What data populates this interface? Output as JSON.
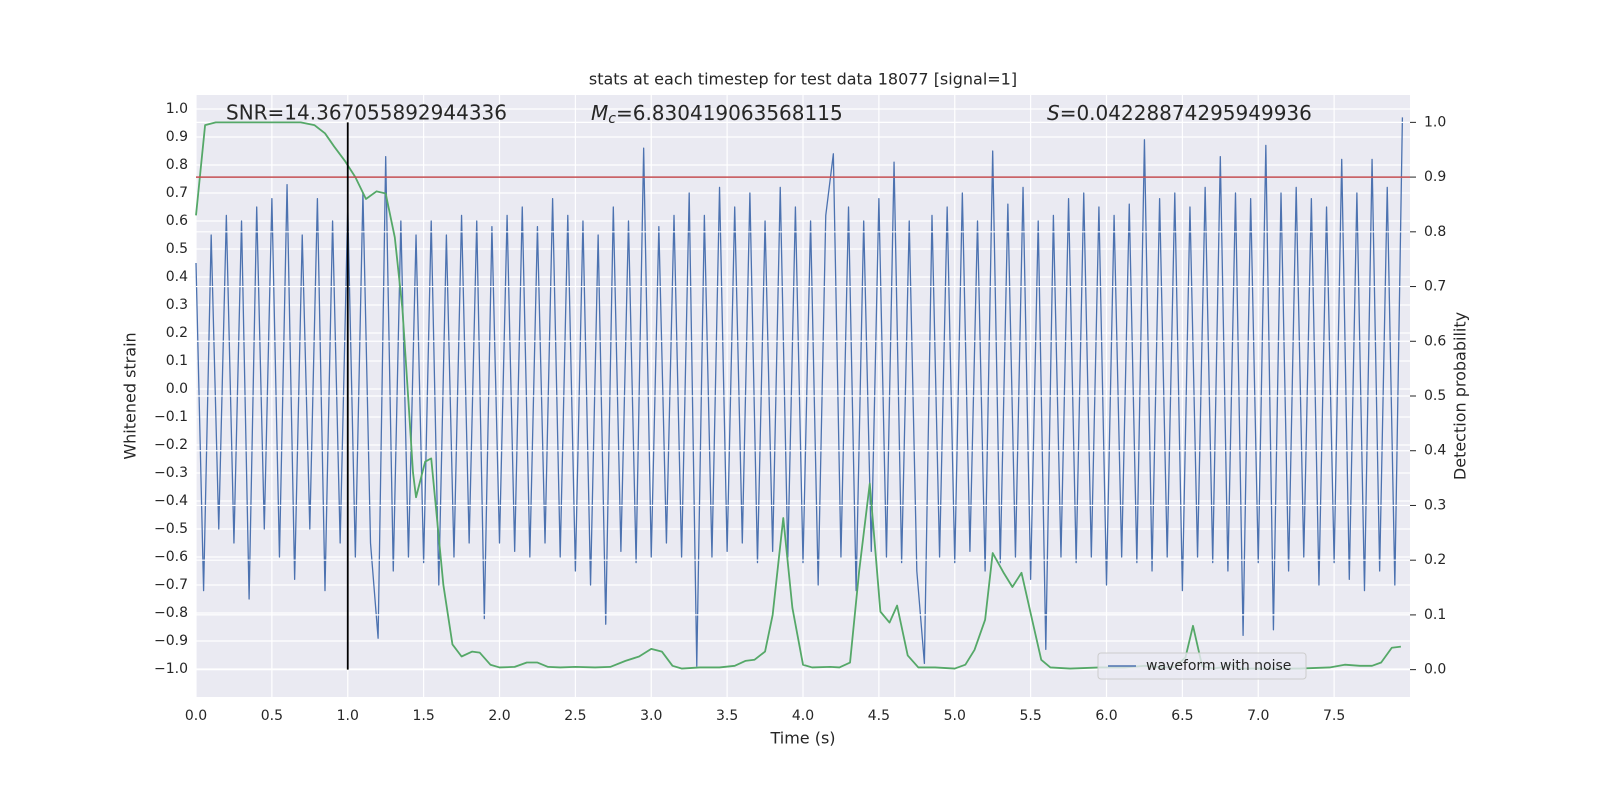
{
  "chart_data": {
    "type": "line",
    "title": "stats at each timestep for test data 18077 [signal=1]",
    "xlabel": "Time (s)",
    "ylabel": "Whitened strain",
    "y2label": "Detection probability",
    "annotations": [
      {
        "text": "SNR=14.367055892944336"
      },
      {
        "symbol": "M",
        "subscript": "c",
        "text": "=6.830419063568115"
      },
      {
        "symbol": "S",
        "text": "=0.04228874295949936"
      }
    ],
    "xlim": [
      0,
      8
    ],
    "ylim": [
      -1.1,
      1.05
    ],
    "y2lim": [
      -0.05,
      1.05
    ],
    "grid": true,
    "legend": "lower right",
    "xticks": [
      {
        "value": 0,
        "label": "0.0"
      },
      {
        "value": 0.5,
        "label": "0.5"
      },
      {
        "value": 1,
        "label": "1.0"
      },
      {
        "value": 1.5,
        "label": "1.5"
      },
      {
        "value": 2,
        "label": "2.0"
      },
      {
        "value": 2.5,
        "label": "2.5"
      },
      {
        "value": 3,
        "label": "3.0"
      },
      {
        "value": 3.5,
        "label": "3.5"
      },
      {
        "value": 4,
        "label": "4.0"
      },
      {
        "value": 4.5,
        "label": "4.5"
      },
      {
        "value": 5,
        "label": "5.0"
      },
      {
        "value": 5.5,
        "label": "5.5"
      },
      {
        "value": 6,
        "label": "6.0"
      },
      {
        "value": 6.5,
        "label": "6.5"
      },
      {
        "value": 7,
        "label": "7.0"
      },
      {
        "value": 7.5,
        "label": "7.5"
      }
    ],
    "yticks": [
      {
        "value": 1,
        "label": "1.0"
      },
      {
        "value": 0.9,
        "label": "0.9"
      },
      {
        "value": 0.8,
        "label": "0.8"
      },
      {
        "value": 0.7,
        "label": "0.7"
      },
      {
        "value": 0.6,
        "label": "0.6"
      },
      {
        "value": 0.5,
        "label": "0.5"
      },
      {
        "value": 0.4,
        "label": "0.4"
      },
      {
        "value": 0.3,
        "label": "0.3"
      },
      {
        "value": 0.2,
        "label": "0.2"
      },
      {
        "value": 0.1,
        "label": "0.1"
      },
      {
        "value": 0,
        "label": "0.0"
      },
      {
        "value": -0.1,
        "label": "−0.1"
      },
      {
        "value": -0.2,
        "label": "−0.2"
      },
      {
        "value": -0.3,
        "label": "−0.3"
      },
      {
        "value": -0.4,
        "label": "−0.4"
      },
      {
        "value": -0.5,
        "label": "−0.5"
      },
      {
        "value": -0.6,
        "label": "−0.6"
      },
      {
        "value": -0.7,
        "label": "−0.7"
      },
      {
        "value": -0.8,
        "label": "−0.8"
      },
      {
        "value": -0.9,
        "label": "−0.9"
      },
      {
        "value": -1,
        "label": "−1.0"
      }
    ],
    "y2ticks": [
      {
        "value": 0,
        "label": "0.0"
      },
      {
        "value": 0.1,
        "label": "0.1"
      },
      {
        "value": 0.2,
        "label": "0.2"
      },
      {
        "value": 0.3,
        "label": "0.3"
      },
      {
        "value": 0.4,
        "label": "0.4"
      },
      {
        "value": 0.5,
        "label": "0.5"
      },
      {
        "value": 0.6,
        "label": "0.6"
      },
      {
        "value": 0.7,
        "label": "0.7"
      },
      {
        "value": 0.8,
        "label": "0.8"
      },
      {
        "value": 0.9,
        "label": "0.9"
      },
      {
        "value": 1,
        "label": "1.0"
      }
    ],
    "hlines": [
      {
        "y": 0.9,
        "axis": "y2",
        "color": "#c44e52"
      }
    ],
    "vlines": [
      {
        "x": 1,
        "ymin": 0,
        "ymax": 1,
        "axis": "y2",
        "color": "#000000"
      }
    ],
    "series": [
      {
        "name": "waveform with noise",
        "color": "#4c72b0",
        "x": [
          0,
          0.05,
          0.1,
          0.15,
          0.2,
          0.25,
          0.3,
          0.35,
          0.4,
          0.45,
          0.5,
          0.55,
          0.6,
          0.65,
          0.7,
          0.75,
          0.8,
          0.85,
          0.9,
          0.95,
          1,
          1.05,
          1.1,
          1.15,
          1.2,
          1.25,
          1.3,
          1.35,
          1.4,
          1.45,
          1.5,
          1.55,
          1.6,
          1.65,
          1.7,
          1.75,
          1.8,
          1.85,
          1.9,
          1.95,
          2,
          2.05,
          2.1,
          2.15,
          2.2,
          2.25,
          2.3,
          2.35,
          2.4,
          2.45,
          2.5,
          2.55,
          2.6,
          2.65,
          2.7,
          2.75,
          2.8,
          2.85,
          2.9,
          2.95,
          3,
          3.05,
          3.1,
          3.15,
          3.2,
          3.25,
          3.3,
          3.35,
          3.4,
          3.45,
          3.5,
          3.55,
          3.6,
          3.65,
          3.7,
          3.75,
          3.8,
          3.85,
          3.9,
          3.95,
          4,
          4.05,
          4.1,
          4.15,
          4.2,
          4.25,
          4.3,
          4.35,
          4.4,
          4.45,
          4.5,
          4.55,
          4.6,
          4.65,
          4.7,
          4.75,
          4.8,
          4.85,
          4.9,
          4.95,
          5,
          5.05,
          5.1,
          5.15,
          5.2,
          5.25,
          5.3,
          5.35,
          5.4,
          5.45,
          5.5,
          5.55,
          5.6,
          5.65,
          5.7,
          5.75,
          5.8,
          5.85,
          5.9,
          5.95,
          6,
          6.05,
          6.1,
          6.15,
          6.2,
          6.25,
          6.3,
          6.35,
          6.4,
          6.45,
          6.5,
          6.55,
          6.6,
          6.65,
          6.7,
          6.75,
          6.8,
          6.85,
          6.9,
          6.95,
          7,
          7.05,
          7.1,
          7.15,
          7.2,
          7.25,
          7.3,
          7.35,
          7.4,
          7.45,
          7.5,
          7.55,
          7.6,
          7.65,
          7.7,
          7.75,
          7.8,
          7.85,
          7.9,
          7.95
        ],
        "values": [
          0.45,
          -0.72,
          0.55,
          -0.5,
          0.62,
          -0.55,
          0.6,
          -0.75,
          0.65,
          -0.5,
          0.68,
          -0.6,
          0.73,
          -0.68,
          0.55,
          -0.5,
          0.68,
          -0.72,
          0.6,
          -0.55,
          0.65,
          -0.6,
          0.7,
          -0.55,
          -0.89,
          0.83,
          -0.65,
          0.6,
          -0.6,
          0.55,
          -0.62,
          0.6,
          -0.7,
          0.55,
          -0.6,
          0.62,
          -0.55,
          0.6,
          -0.82,
          0.58,
          -0.55,
          0.62,
          -0.58,
          0.65,
          -0.6,
          0.58,
          -0.55,
          0.68,
          -0.6,
          0.62,
          -0.65,
          0.6,
          -0.7,
          0.55,
          -0.84,
          0.65,
          -0.58,
          0.6,
          -0.62,
          0.86,
          -0.6,
          0.58,
          -0.55,
          0.62,
          -0.6,
          0.7,
          -0.99,
          0.62,
          -0.6,
          0.72,
          -0.58,
          0.65,
          -0.55,
          0.7,
          -0.62,
          0.6,
          -0.58,
          0.72,
          -0.6,
          0.65,
          -0.62,
          0.6,
          -0.7,
          0.62,
          0.84,
          -0.6,
          0.65,
          -0.72,
          0.6,
          -0.58,
          0.68,
          -0.6,
          0.81,
          -0.62,
          0.6,
          -0.65,
          -0.98,
          0.62,
          -0.6,
          0.65,
          -0.62,
          0.7,
          -0.58,
          0.6,
          -0.65,
          0.85,
          -0.62,
          0.66,
          -0.6,
          0.72,
          -0.68,
          0.6,
          -0.93,
          0.62,
          -0.6,
          0.68,
          -0.62,
          0.7,
          -0.6,
          0.65,
          -0.7,
          0.62,
          -0.6,
          0.66,
          -0.62,
          0.89,
          -0.65,
          0.68,
          -0.6,
          0.7,
          -0.72,
          0.65,
          -0.6,
          0.72,
          -0.62,
          0.83,
          -0.65,
          0.7,
          -0.88,
          0.68,
          -0.62,
          0.87,
          -0.86,
          0.7,
          -0.65,
          0.72,
          -0.6,
          0.68,
          -0.7,
          0.65,
          -0.62,
          0.82,
          -0.68,
          0.7,
          -0.72,
          0.82,
          -0.65,
          0.72,
          -0.7,
          0.97
        ]
      },
      {
        "color": "#55a868",
        "axis": "y2",
        "x": [
          0,
          0.06,
          0.13,
          0.69,
          0.78,
          0.85,
          0.91,
          0.98,
          1.05,
          1.12,
          1.19,
          1.25,
          1.31,
          1.36,
          1.4,
          1.43,
          1.45,
          1.51,
          1.55,
          1.63,
          1.69,
          1.75,
          1.82,
          1.87,
          1.94,
          2,
          2.1,
          2.18,
          2.25,
          2.32,
          2.4,
          2.5,
          2.63,
          2.73,
          2.83,
          2.92,
          3,
          3.07,
          3.14,
          3.2,
          3.32,
          3.45,
          3.55,
          3.62,
          3.68,
          3.75,
          3.8,
          3.87,
          3.93,
          4,
          4.06,
          4.18,
          4.24,
          4.31,
          4.37,
          4.44,
          4.51,
          4.57,
          4.62,
          4.69,
          4.76,
          4.87,
          5,
          5.07,
          5.13,
          5.2,
          5.25,
          5.32,
          5.38,
          5.44,
          5.51,
          5.57,
          5.63,
          5.76,
          5.96,
          6.12,
          6.25,
          6.38,
          6.45,
          6.52,
          6.57,
          6.63,
          6.7,
          6.76,
          6.82,
          6.88,
          7.01,
          7.27,
          7.47,
          7.57,
          7.67,
          7.75,
          7.81,
          7.88,
          7.94
        ],
        "values": [
          0.83,
          0.995,
          1,
          1,
          0.995,
          0.98,
          0.956,
          0.93,
          0.9,
          0.86,
          0.874,
          0.87,
          0.79,
          0.66,
          0.49,
          0.36,
          0.315,
          0.38,
          0.386,
          0.155,
          0.046,
          0.024,
          0.033,
          0.031,
          0.009,
          0.004,
          0.005,
          0.013,
          0.013,
          0.005,
          0.004,
          0.005,
          0.004,
          0.005,
          0.016,
          0.024,
          0.038,
          0.033,
          0.007,
          0.002,
          0.004,
          0.004,
          0.007,
          0.016,
          0.018,
          0.033,
          0.1,
          0.277,
          0.113,
          0.009,
          0.004,
          0.005,
          0.004,
          0.013,
          0.18,
          0.34,
          0.106,
          0.086,
          0.117,
          0.026,
          0.004,
          0.004,
          0.002,
          0.009,
          0.036,
          0.091,
          0.213,
          0.178,
          0.151,
          0.177,
          0.091,
          0.018,
          0.004,
          0.002,
          0.004,
          0.004,
          0.007,
          0.004,
          0.005,
          0.022,
          0.08,
          0.007,
          0.002,
          0.004,
          0.009,
          0.002,
          0.002,
          0.002,
          0.004,
          0.009,
          0.007,
          0.007,
          0.013,
          0.04,
          0.042
        ]
      }
    ]
  }
}
